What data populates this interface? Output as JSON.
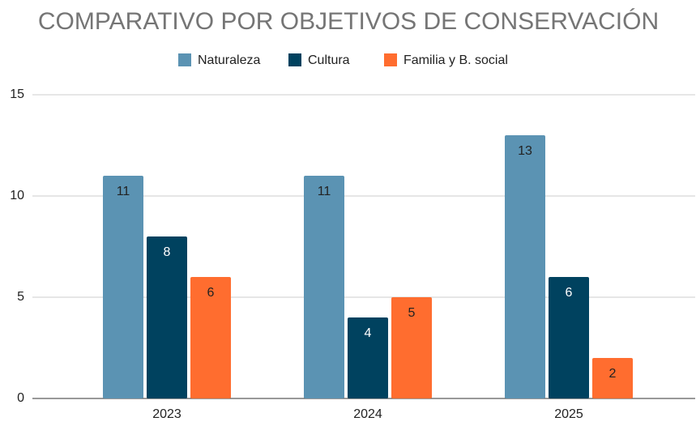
{
  "chart_data": {
    "type": "bar",
    "title": "COMPARATIVO POR OBJETIVOS DE CONSERVACIÓN",
    "categories": [
      "2023",
      "2024",
      "2025"
    ],
    "series": [
      {
        "name": "Naturaleza",
        "color": "#5b93b3",
        "values": [
          11,
          11,
          13
        ]
      },
      {
        "name": "Cultura",
        "color": "#00425f",
        "values": [
          8,
          4,
          6
        ]
      },
      {
        "name": "Familia y B. social",
        "color": "#ff6d2f",
        "values": [
          6,
          5,
          2
        ]
      }
    ],
    "ylim": [
      0,
      15
    ],
    "yticks": [
      0,
      5,
      10,
      15
    ],
    "grid": true,
    "legend": "top"
  }
}
